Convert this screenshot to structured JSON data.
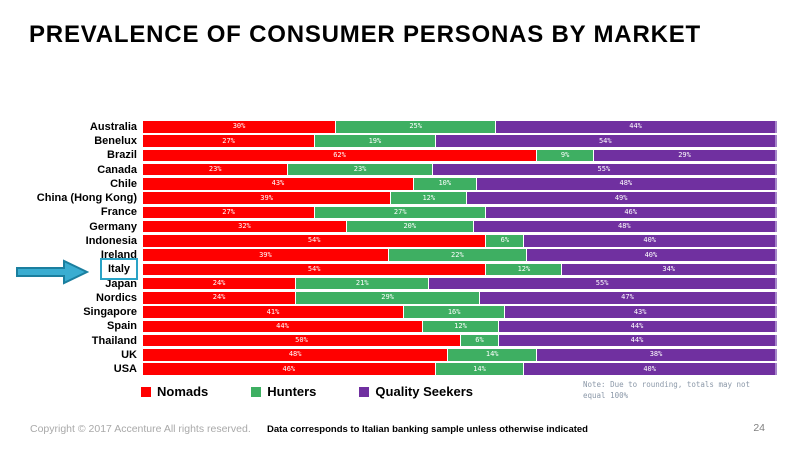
{
  "title": "PREVALENCE OF CONSUMER PERSONAS BY MARKET",
  "chart_data": {
    "type": "bar",
    "orientation": "horizontal",
    "stacked": true,
    "unit": "%",
    "categories": [
      "Australia",
      "Benelux",
      "Brazil",
      "Canada",
      "Chile",
      "China (Hong Kong)",
      "France",
      "Germany",
      "Indonesia",
      "Ireland",
      "Italy",
      "Japan",
      "Nordics",
      "Singapore",
      "Spain",
      "Thailand",
      "UK",
      "USA"
    ],
    "series": [
      {
        "name": "Nomads",
        "color": "#FF0000",
        "values": [
          30,
          27,
          62,
          23,
          43,
          39,
          27,
          32,
          54,
          39,
          54,
          24,
          24,
          41,
          44,
          50,
          48,
          46
        ]
      },
      {
        "name": "Hunters",
        "color": "#3EAF62",
        "values": [
          25,
          19,
          9,
          23,
          10,
          12,
          27,
          20,
          6,
          22,
          12,
          21,
          29,
          16,
          12,
          6,
          14,
          14
        ]
      },
      {
        "name": "Quality Seekers",
        "color": "#7030A0",
        "values": [
          44,
          54,
          29,
          55,
          48,
          49,
          46,
          48,
          40,
          40,
          34,
          55,
          47,
          43,
          44,
          44,
          38,
          40
        ]
      }
    ],
    "highlighted_category": "Italy",
    "note": "Note: Due to rounding, totals may not equal 100%"
  },
  "legend": {
    "items": [
      {
        "label": "Nomads",
        "color": "#FF0000"
      },
      {
        "label": "Hunters",
        "color": "#3EAF62"
      },
      {
        "label": "Quality Seekers",
        "color": "#7030A0"
      }
    ]
  },
  "colors": {
    "highlight_border": "#2AA3C6",
    "arrow_fill": "#3AADD1",
    "arrow_stroke": "#1B7F9F",
    "note_text": "#8C99A9"
  },
  "footer": {
    "copyright": "Copyright © 2017 Accenture  All rights reserved.",
    "center_note": "Data corresponds to Italian banking sample unless otherwise indicated",
    "page_number": "24"
  }
}
